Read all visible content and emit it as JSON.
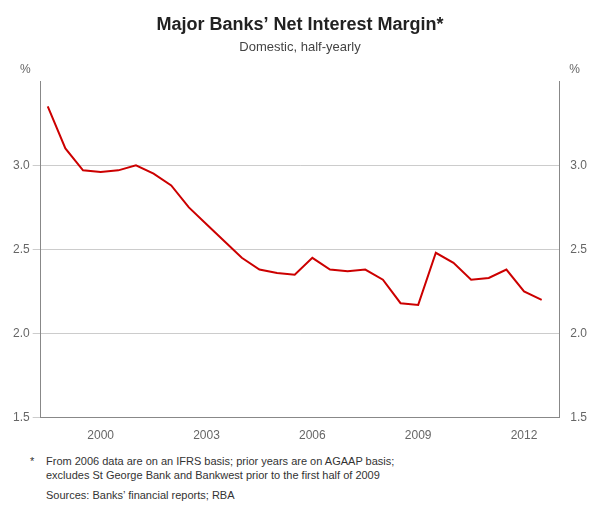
{
  "chart_data": {
    "type": "line",
    "title": "Major Banks’ Net Interest Margin*",
    "subtitle": "Domestic, half-yearly",
    "ylabel": "%",
    "y2label": "%",
    "x": [
      1998.5,
      1999.0,
      1999.5,
      2000.0,
      2000.5,
      2001.0,
      2001.5,
      2002.0,
      2002.5,
      2003.0,
      2003.5,
      2004.0,
      2004.5,
      2005.0,
      2005.5,
      2006.0,
      2006.5,
      2007.0,
      2007.5,
      2008.0,
      2008.5,
      2009.0,
      2009.5,
      2010.0,
      2010.5,
      2011.0,
      2011.5,
      2012.0,
      2012.5
    ],
    "values": [
      3.35,
      3.1,
      2.97,
      2.96,
      2.97,
      3.0,
      2.95,
      2.88,
      2.75,
      2.65,
      2.55,
      2.45,
      2.38,
      2.36,
      2.35,
      2.45,
      2.38,
      2.37,
      2.38,
      2.32,
      2.18,
      2.17,
      2.48,
      2.42,
      2.32,
      2.33,
      2.38,
      2.25,
      2.2
    ],
    "color": "#cc0000",
    "xlim": [
      1998.3,
      2013.0
    ],
    "xticks": [
      2000,
      2003,
      2006,
      2009,
      2012
    ],
    "ylim": [
      1.5,
      3.5
    ],
    "yticks": [
      1.5,
      {
        "value": 2.0,
        "label": "2.0"
      },
      2.5,
      {
        "value": 3.0,
        "label": "3.0"
      }
    ],
    "y2lim": [
      1.5,
      3.5
    ],
    "y2ticks": [
      1.5,
      {
        "value": 2.0,
        "label": "2.0"
      },
      2.5,
      {
        "value": 3.0,
        "label": "3.0"
      }
    ],
    "grid": true,
    "footnotes": [
      {
        "marker": "*",
        "text": "From 2006 data are on an IFRS basis; prior years are on AGAAP basis;\nexcludes St George Bank and Bankwest prior to the first half of 2009"
      },
      {
        "text": "Sources: Banks’ financial reports; RBA"
      }
    ]
  }
}
